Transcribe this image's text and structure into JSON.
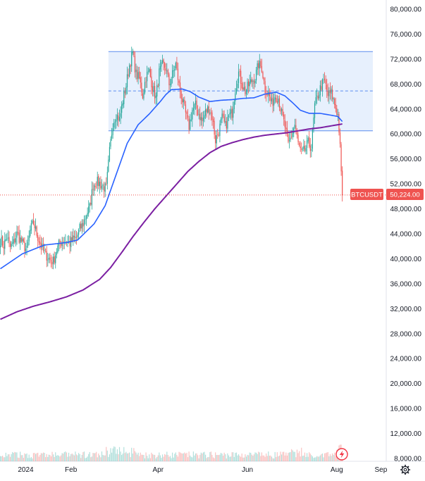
{
  "chart_data": {
    "type": "candlestick",
    "symbol": "BTCUSDT",
    "last_price": 50224,
    "last_price_label": "50,224.00",
    "ylim": [
      7000,
      81000
    ],
    "y_ticks": [
      "80,000.00",
      "76,000.00",
      "72,000.00",
      "68,000.00",
      "64,000.00",
      "60,000.00",
      "56,000.00",
      "52,000.00",
      "48,000.00",
      "44,000.00",
      "40,000.00",
      "36,000.00",
      "32,000.00",
      "28,000.00",
      "24,000.00",
      "20,000.00",
      "16,000.00",
      "12,000.00",
      "8,000.00"
    ],
    "x_ticks": [
      "2024",
      "Feb",
      "Apr",
      "Jun",
      "Aug",
      "Sep"
    ],
    "range_box": {
      "upper": 73200,
      "lower": 60500,
      "mid": 66900
    },
    "colors": {
      "up": "#26a69a",
      "down": "#ef5350",
      "ma_fast": "#2962ff",
      "ma_slow": "#7b1fa2",
      "range_fill": "#e3edfd",
      "range_line": "#5b8def",
      "last_price": "#ef5350"
    },
    "close_anchors": [
      [
        0,
        43000
      ],
      [
        3,
        42200
      ],
      [
        6,
        43500
      ],
      [
        9,
        41800
      ],
      [
        12,
        42600
      ],
      [
        15,
        44000
      ],
      [
        18,
        43100
      ],
      [
        21,
        42200
      ],
      [
        24,
        41300
      ],
      [
        27,
        44500
      ],
      [
        30,
        45800
      ],
      [
        33,
        44000
      ],
      [
        36,
        42500
      ],
      [
        39,
        41200
      ],
      [
        42,
        40500
      ],
      [
        45,
        39800
      ],
      [
        48,
        39600
      ],
      [
        51,
        41400
      ],
      [
        54,
        42600
      ],
      [
        57,
        43000
      ],
      [
        60,
        42800
      ],
      [
        63,
        42500
      ],
      [
        66,
        43100
      ],
      [
        69,
        43400
      ],
      [
        72,
        44800
      ],
      [
        75,
        45600
      ],
      [
        78,
        47200
      ],
      [
        81,
        48200
      ],
      [
        84,
        51800
      ],
      [
        87,
        52300
      ],
      [
        90,
        52100
      ],
      [
        93,
        51600
      ],
      [
        96,
        51200
      ],
      [
        99,
        57200
      ],
      [
        102,
        61800
      ],
      [
        105,
        63200
      ],
      [
        108,
        62300
      ],
      [
        111,
        65400
      ],
      [
        114,
        67800
      ],
      [
        117,
        71000
      ],
      [
        120,
        73000
      ],
      [
        123,
        69600
      ],
      [
        126,
        68800
      ],
      [
        129,
        66200
      ],
      [
        132,
        69200
      ],
      [
        135,
        70000
      ],
      [
        138,
        67500
      ],
      [
        141,
        65800
      ],
      [
        144,
        69800
      ],
      [
        147,
        71000
      ],
      [
        150,
        70600
      ],
      [
        153,
        68000
      ],
      [
        156,
        69500
      ],
      [
        159,
        71200
      ],
      [
        162,
        67800
      ],
      [
        165,
        65400
      ],
      [
        168,
        63200
      ],
      [
        171,
        61200
      ],
      [
        174,
        63800
      ],
      [
        177,
        64500
      ],
      [
        180,
        63200
      ],
      [
        183,
        62000
      ],
      [
        186,
        63500
      ],
      [
        189,
        64200
      ],
      [
        192,
        62800
      ],
      [
        195,
        59000
      ],
      [
        198,
        60500
      ],
      [
        201,
        62500
      ],
      [
        204,
        61200
      ],
      [
        207,
        62800
      ],
      [
        210,
        63400
      ],
      [
        213,
        67200
      ],
      [
        216,
        69800
      ],
      [
        219,
        68000
      ],
      [
        222,
        66800
      ],
      [
        225,
        67800
      ],
      [
        228,
        68500
      ],
      [
        231,
        69000
      ],
      [
        234,
        71200
      ],
      [
        237,
        70600
      ],
      [
        240,
        67200
      ],
      [
        243,
        66500
      ],
      [
        246,
        64800
      ],
      [
        249,
        66200
      ],
      [
        252,
        65800
      ],
      [
        255,
        63200
      ],
      [
        258,
        61200
      ],
      [
        261,
        58200
      ],
      [
        264,
        59800
      ],
      [
        267,
        61500
      ],
      [
        270,
        58400
      ],
      [
        273,
        56800
      ],
      [
        276,
        57400
      ],
      [
        279,
        58500
      ],
      [
        282,
        57800
      ],
      [
        285,
        64500
      ],
      [
        288,
        66200
      ],
      [
        291,
        67800
      ],
      [
        294,
        68400
      ],
      [
        297,
        66200
      ],
      [
        300,
        66600
      ],
      [
        303,
        64800
      ],
      [
        306,
        63000
      ],
      [
        308,
        58400
      ],
      [
        309,
        54000
      ],
      [
        310,
        50224
      ]
    ],
    "ma_fast_anchors": [
      [
        0,
        38400
      ],
      [
        20,
        40800
      ],
      [
        40,
        42200
      ],
      [
        60,
        42600
      ],
      [
        70,
        43000
      ],
      [
        85,
        45600
      ],
      [
        95,
        48500
      ],
      [
        105,
        53500
      ],
      [
        115,
        58500
      ],
      [
        125,
        61500
      ],
      [
        135,
        63200
      ],
      [
        145,
        65200
      ],
      [
        150,
        66300
      ],
      [
        155,
        67100
      ],
      [
        165,
        67200
      ],
      [
        172,
        66800
      ],
      [
        180,
        65900
      ],
      [
        190,
        65200
      ],
      [
        200,
        65400
      ],
      [
        210,
        65500
      ],
      [
        220,
        65700
      ],
      [
        230,
        65800
      ],
      [
        240,
        66400
      ],
      [
        250,
        66700
      ],
      [
        258,
        66100
      ],
      [
        265,
        65000
      ],
      [
        272,
        63800
      ],
      [
        280,
        63300
      ],
      [
        290,
        63300
      ],
      [
        300,
        63000
      ],
      [
        306,
        62800
      ],
      [
        310,
        62000
      ]
    ],
    "ma_slow_anchors": [
      [
        0,
        30300
      ],
      [
        15,
        31500
      ],
      [
        30,
        32400
      ],
      [
        45,
        33100
      ],
      [
        60,
        33900
      ],
      [
        75,
        35000
      ],
      [
        90,
        36700
      ],
      [
        100,
        38600
      ],
      [
        110,
        41000
      ],
      [
        120,
        43500
      ],
      [
        130,
        45800
      ],
      [
        140,
        48000
      ],
      [
        150,
        50000
      ],
      [
        160,
        52000
      ],
      [
        170,
        54000
      ],
      [
        180,
        55600
      ],
      [
        190,
        57000
      ],
      [
        200,
        58000
      ],
      [
        210,
        58600
      ],
      [
        220,
        59100
      ],
      [
        230,
        59500
      ],
      [
        240,
        59800
      ],
      [
        250,
        60000
      ],
      [
        260,
        60200
      ],
      [
        270,
        60500
      ],
      [
        280,
        60800
      ],
      [
        290,
        61000
      ],
      [
        300,
        61300
      ],
      [
        310,
        61600
      ]
    ]
  },
  "ui": {
    "price_badge": "BTCUSDT",
    "price_value": "50,224.00",
    "bolt_icon": "lightning-icon",
    "settings_icon": "gear-icon"
  }
}
